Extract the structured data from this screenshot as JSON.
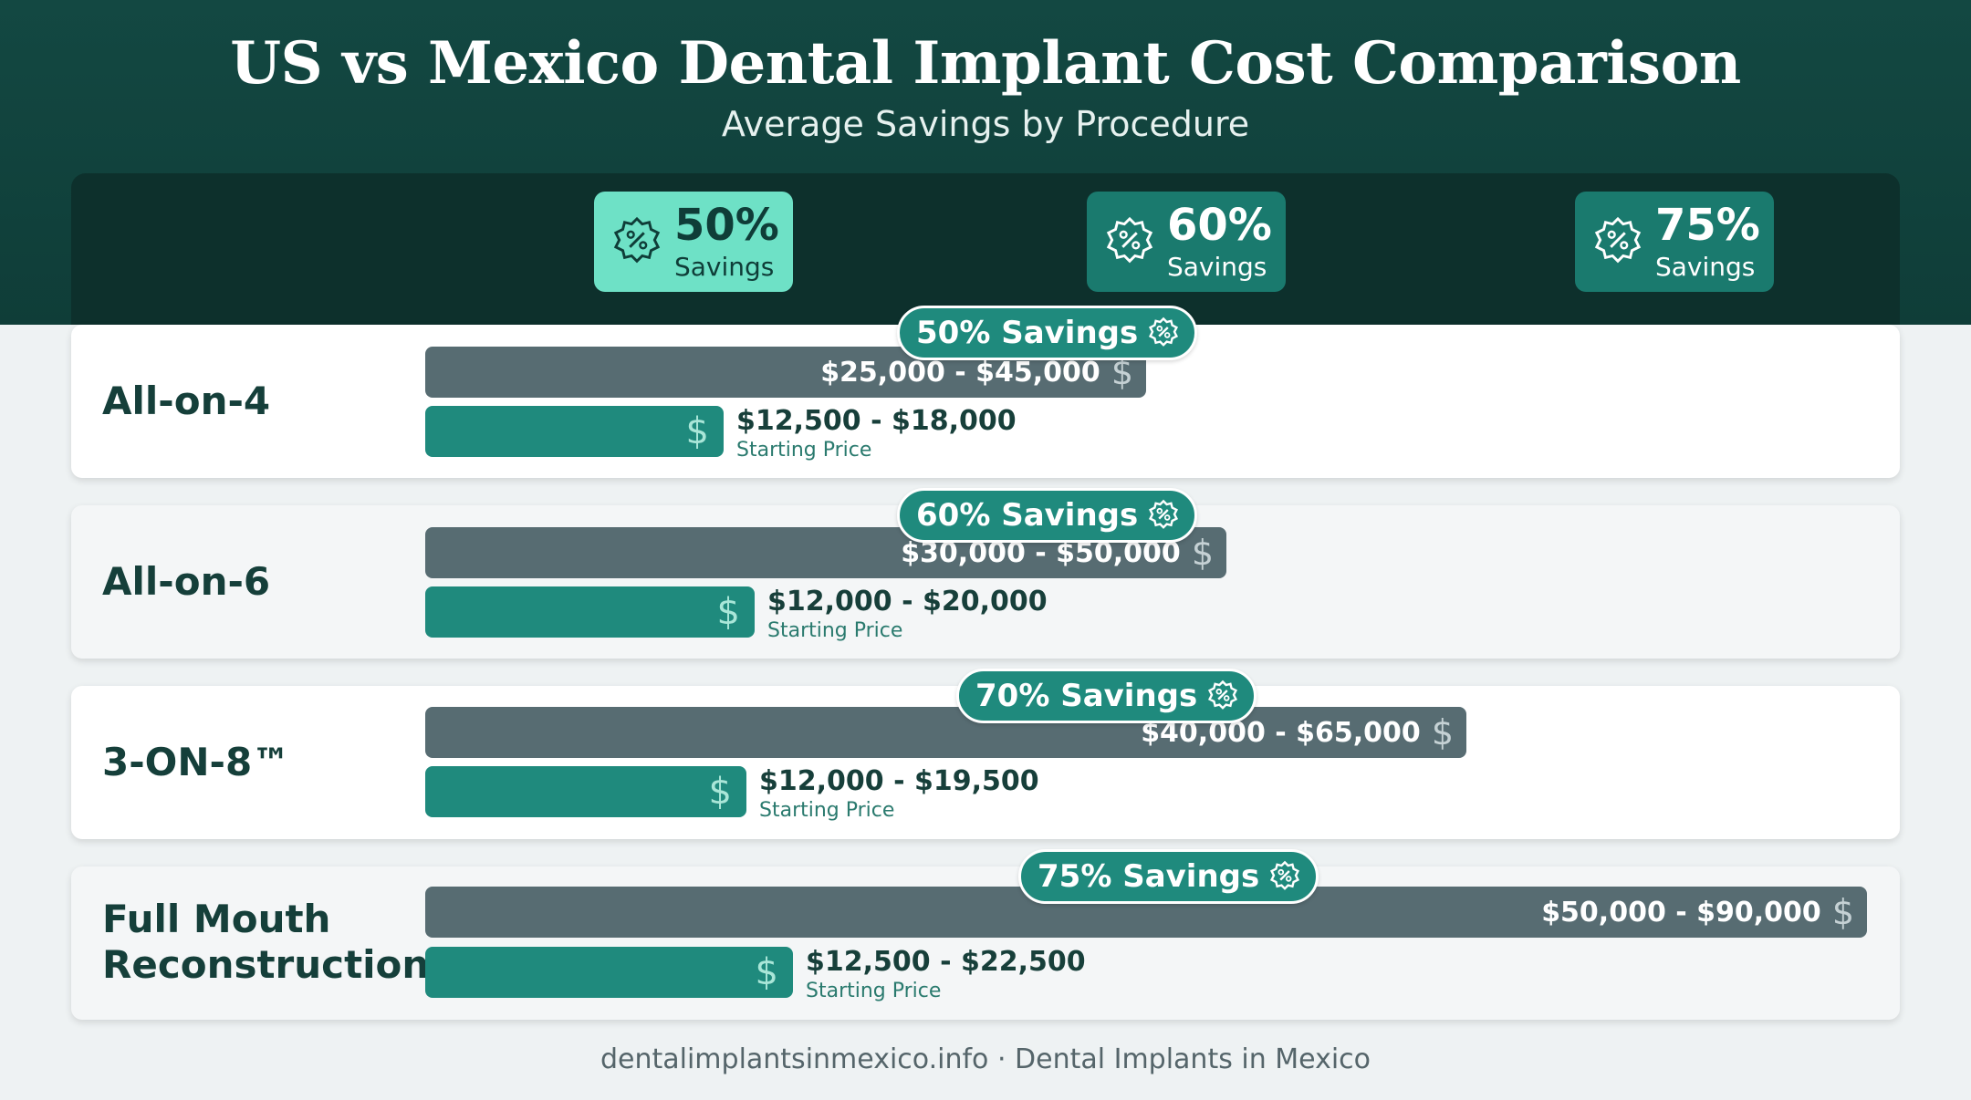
{
  "title": "US vs Mexico Dental Implant Cost Comparison",
  "subtitle": "Average Savings by Procedure",
  "top_badges": [
    {
      "percent": "50%",
      "label": "Savings",
      "icon": "percent-badge-icon",
      "color": "#6ee1c6"
    },
    {
      "percent": "60%",
      "label": "Savings",
      "icon": "percent-badge-icon",
      "color": "#1a7a6e"
    },
    {
      "percent": "75%",
      "label": "Savings",
      "icon": "percent-badge-icon",
      "color": "#1a7a6e"
    }
  ],
  "rows": [
    {
      "name_line1": "All-on-4",
      "name_line2": "",
      "savings_label": "50% Savings",
      "us_price": "$25,000 - $45,000",
      "mx_price": "$12,500 - $18,000",
      "mx_sub": "Starting Price"
    },
    {
      "name_line1": "All-on-6",
      "name_line2": "",
      "savings_label": "60% Savings",
      "us_price": "$30,000 - $50,000",
      "mx_price": "$12,000 - $20,000",
      "mx_sub": "Starting Price"
    },
    {
      "name_line1": "3-ON-8™",
      "name_line2": "",
      "savings_label": "70% Savings",
      "us_price": "$40,000 - $65,000",
      "mx_price": "$12,000 - $19,500",
      "mx_sub": "Starting Price"
    },
    {
      "name_line1": "Full Mouth",
      "name_line2": "Reconstruction",
      "savings_label": "75% Savings",
      "us_price": "$50,000 - $90,000",
      "mx_price": "$12,500 - $22,500",
      "mx_sub": "Starting Price"
    }
  ],
  "footer": "dentalimplantsinmexico.info · Dental Implants in Mexico",
  "colors": {
    "header": "#134842",
    "us_bar": "#576c72",
    "mexico_bar": "#1f8a7d",
    "accent": "#6ee1c6"
  },
  "chart_data": {
    "type": "bar",
    "title": "US vs Mexico Dental Implant Cost Comparison",
    "subtitle": "Average Savings by Procedure",
    "categories": [
      "All-on-4",
      "All-on-6",
      "3-ON-8™",
      "Full Mouth Reconstruction"
    ],
    "series": [
      {
        "values": [
          45000,
          50000,
          65000,
          90000
        ]
      },
      {
        "values": [
          18000,
          20000,
          19500,
          22500
        ]
      }
    ],
    "savings_percent": [
      50,
      60,
      70,
      75
    ],
    "orientation": "horizontal",
    "xlim": [
      0,
      90000
    ],
    "grid": false
  }
}
